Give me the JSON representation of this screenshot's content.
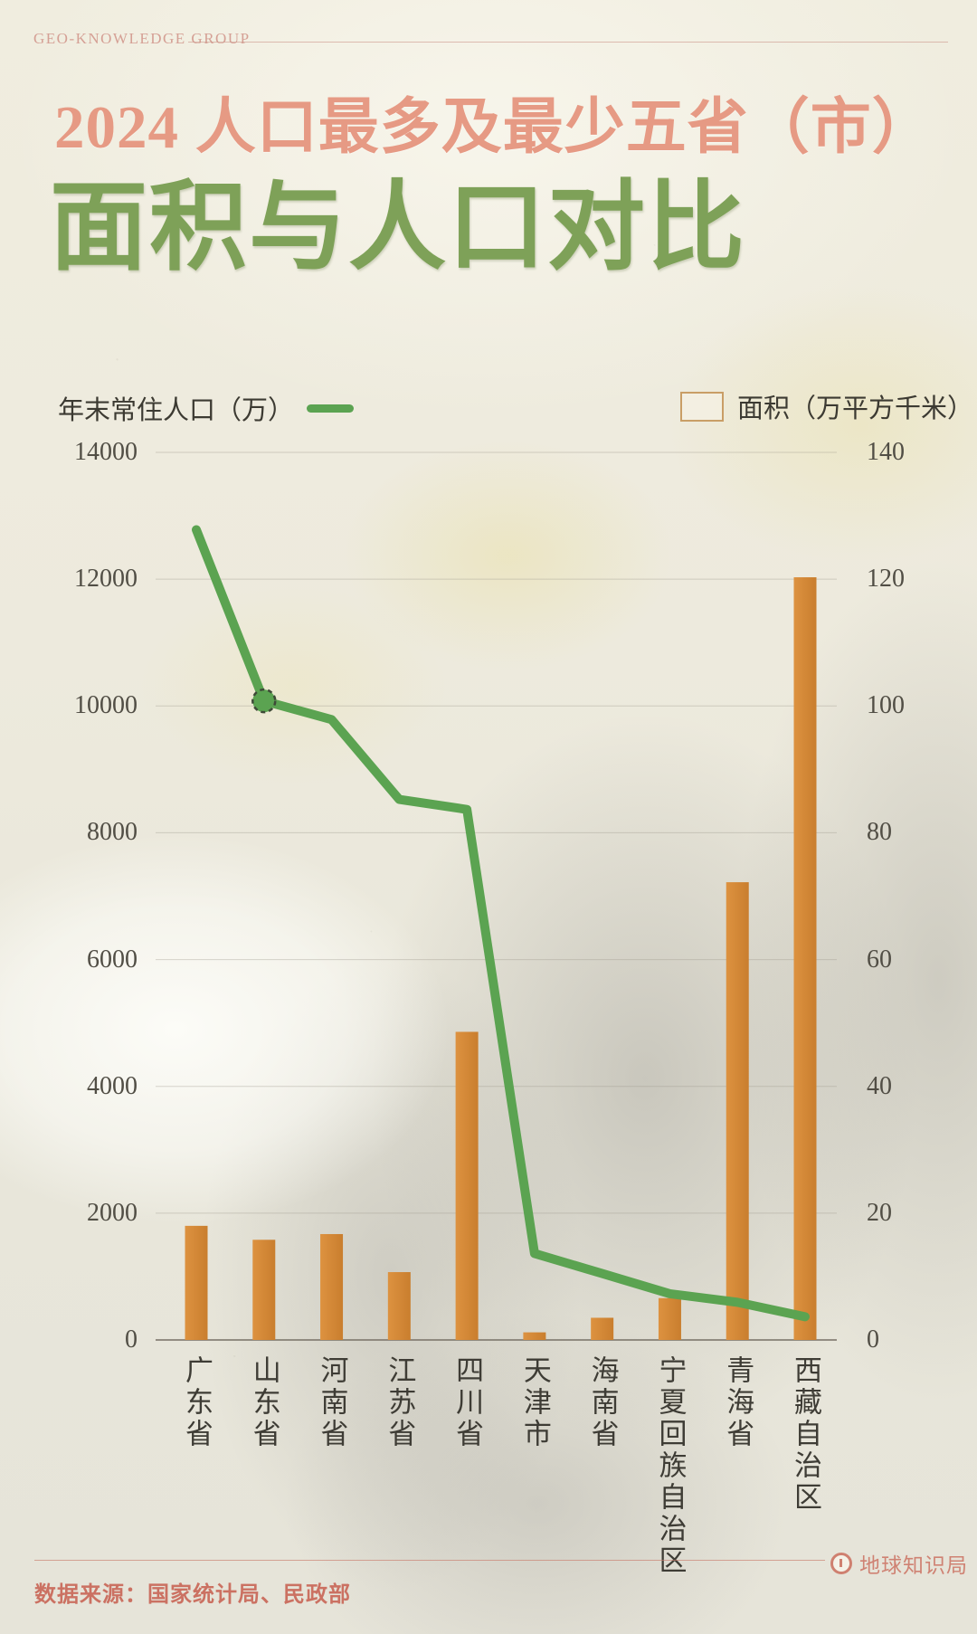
{
  "header": {
    "brand": "GEO-KNOWLEDGE GROUP"
  },
  "title": {
    "line1": "2024 人口最多及最少五省（市）",
    "line2": "面积与人口对比"
  },
  "legend": {
    "left_label": "年末常住人口（万）",
    "right_label": "面积（万平方千米）"
  },
  "footer": {
    "source": "数据来源：国家统计局、民政部",
    "logo_text": "地球知识局"
  },
  "colors": {
    "bar": "#dd9240",
    "bar_dark": "#c97e2e",
    "line": "#5ba351",
    "marker_ring": "#3e4a38",
    "grid": "#9a958a",
    "baseline": "#827d72",
    "title_pink": "#e69a84",
    "title_green": "#7ea158",
    "accent_salmon": "#cb7162"
  },
  "chart_data": {
    "type": "combo-bar-line",
    "title": "2024 人口最多及最少五省（市）面积与人口对比",
    "categories": [
      "广东省",
      "山东省",
      "河南省",
      "江苏省",
      "四川省",
      "天津市",
      "海南省",
      "宁夏回族自治区",
      "青海省",
      "西藏自治区"
    ],
    "series": [
      {
        "name": "年末常住人口（万）",
        "type": "line",
        "axis": "left",
        "values": [
          12780,
          10080,
          9785,
          8526,
          8368,
          1364,
          1048,
          729,
          594,
          366
        ],
        "marker_index": 1
      },
      {
        "name": "面积（万平方千米）",
        "type": "bar",
        "axis": "right",
        "values": [
          18,
          15.8,
          16.7,
          10.7,
          48.6,
          1.2,
          3.5,
          6.6,
          72.2,
          120.3
        ]
      }
    ],
    "left_axis": {
      "ticks": [
        14000,
        12000,
        10000,
        8000,
        6000,
        4000,
        2000,
        0
      ],
      "range": [
        0,
        14000
      ]
    },
    "right_axis": {
      "ticks": [
        140,
        120,
        100,
        80,
        60,
        40,
        20,
        0
      ],
      "range": [
        0,
        140
      ]
    },
    "grid": true,
    "legend_position": "top"
  }
}
